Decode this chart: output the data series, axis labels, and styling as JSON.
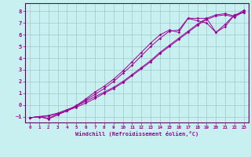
{
  "title": "",
  "xlabel": "Windchill (Refroidissement éolien,°C)",
  "bg_color": "#c8f0f0",
  "grid_color": "#a0c8c8",
  "line_color": "#990099",
  "spine_color": "#660066",
  "xlim": [
    -0.5,
    23.5
  ],
  "ylim": [
    -1.5,
    8.7
  ],
  "xticks": [
    0,
    1,
    2,
    3,
    4,
    5,
    6,
    7,
    8,
    9,
    10,
    11,
    12,
    13,
    14,
    15,
    16,
    17,
    18,
    19,
    20,
    21,
    22,
    23
  ],
  "yticks": [
    -1,
    0,
    1,
    2,
    3,
    4,
    5,
    6,
    7,
    8
  ],
  "line1_x": [
    0,
    1,
    2,
    3,
    4,
    5,
    6,
    7,
    8,
    9,
    10,
    11,
    12,
    13,
    14,
    15,
    16,
    17,
    18,
    19,
    20,
    21,
    22,
    23
  ],
  "line1_y": [
    -1.1,
    -1.0,
    -0.9,
    -0.7,
    -0.4,
    -0.1,
    0.3,
    0.7,
    1.1,
    1.5,
    2.0,
    2.6,
    3.2,
    3.8,
    4.5,
    5.1,
    5.7,
    6.3,
    6.9,
    7.4,
    7.7,
    7.8,
    7.6,
    8.1
  ],
  "line2_x": [
    0,
    1,
    2,
    3,
    4,
    5,
    6,
    7,
    8,
    9,
    10,
    11,
    12,
    13,
    14,
    15,
    16,
    17,
    18,
    19,
    20,
    21,
    22,
    23
  ],
  "line2_y": [
    -1.1,
    -1.0,
    -0.95,
    -0.75,
    -0.5,
    -0.2,
    0.15,
    0.55,
    1.0,
    1.4,
    1.9,
    2.5,
    3.1,
    3.7,
    4.4,
    5.0,
    5.6,
    6.2,
    6.8,
    7.3,
    7.6,
    7.7,
    7.5,
    8.0
  ],
  "line3_x": [
    0,
    1,
    2,
    3,
    4,
    5,
    6,
    7,
    8,
    9,
    10,
    11,
    12,
    13,
    14,
    15,
    16,
    17,
    18,
    19,
    20,
    21,
    22,
    23
  ],
  "line3_y": [
    -1.1,
    -1.0,
    -1.15,
    -0.8,
    -0.5,
    -0.1,
    0.4,
    0.9,
    1.4,
    2.0,
    2.7,
    3.4,
    4.2,
    5.0,
    5.7,
    6.3,
    6.4,
    7.4,
    7.4,
    7.4,
    6.2,
    6.9,
    7.7,
    7.9
  ],
  "line4_x": [
    0,
    1,
    2,
    3,
    4,
    5,
    6,
    7,
    8,
    9,
    10,
    11,
    12,
    13,
    14,
    15,
    16,
    17,
    18,
    19,
    20,
    21,
    22,
    23
  ],
  "line4_y": [
    -1.1,
    -1.0,
    -1.2,
    -0.85,
    -0.5,
    -0.05,
    0.5,
    1.1,
    1.6,
    2.2,
    2.9,
    3.7,
    4.5,
    5.3,
    6.0,
    6.4,
    6.2,
    7.4,
    7.2,
    7.0,
    6.2,
    6.7,
    7.7,
    7.9
  ]
}
